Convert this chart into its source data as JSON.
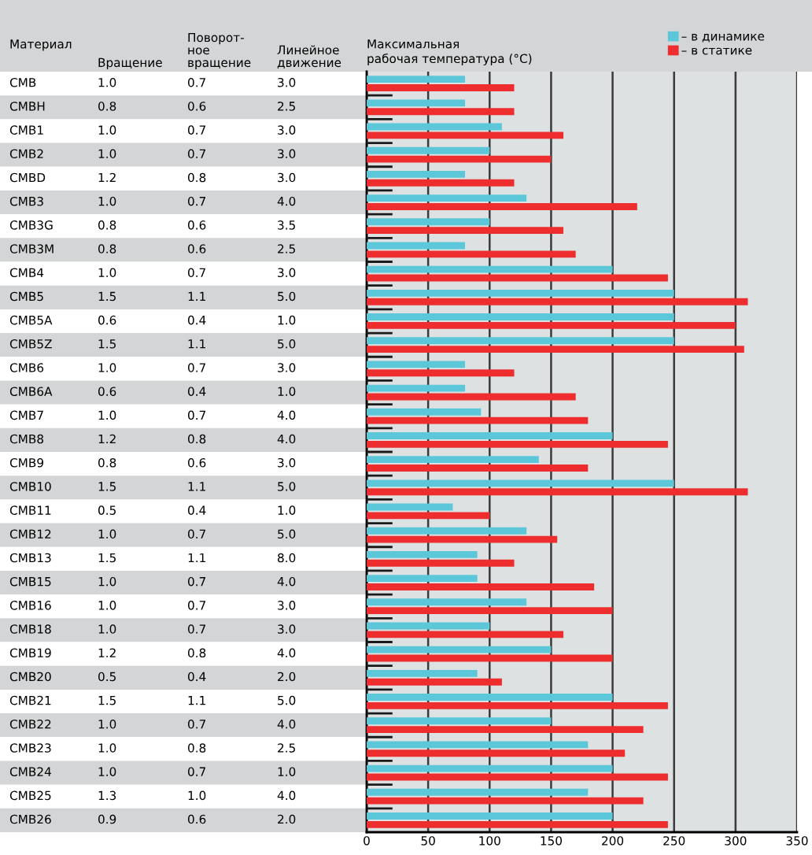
{
  "chart_data": [
    {
      "type": "other",
      "ylabel": "Материал",
      "categories": [
        "CMB",
        "CMBH",
        "CMB1",
        "CMB2",
        "CMBD",
        "CMB3",
        "CMB3G",
        "CMB3M",
        "CMB4",
        "CMB5",
        "CMB5A",
        "CMB5Z",
        "CMB6",
        "CMB6A",
        "CMB7",
        "CMB8",
        "CMB9",
        "CMB10",
        "CMB11",
        "CMB12",
        "CMB13",
        "CMB15",
        "CMB16",
        "CMB18",
        "CMB19",
        "CMB20",
        "CMB21",
        "CMB22",
        "CMB23",
        "CMB24",
        "CMB25",
        "CMB26"
      ],
      "series": [
        {
          "name": "Вращение",
          "colors": [
            "#ffffff",
            "#d4d5d6",
            "#ffffff",
            "#d4d5d6",
            "#ffffff",
            "#d4d5d6",
            "#ffffff",
            "#d4d5d6",
            "#ffffff",
            "#d4d5d6",
            "#ffffff",
            "#d4d5d6",
            "#ffffff",
            "#d4d5d6",
            "#ffffff",
            "#d4d5d6",
            "#ffffff",
            "#d4d5d6",
            "#ffffff",
            "#d4d5d6",
            "#ffffff",
            "#d4d5d6",
            "#ffffff",
            "#d4d5d6",
            "#ffffff",
            "#d4d5d6",
            "#ffffff",
            "#d4d5d6",
            "#ffffff",
            "#d4d5d6",
            "#ffffff",
            "#d4d5d6"
          ],
          "values": [
            1.0,
            0.8,
            1.0,
            1.0,
            1.2,
            1.0,
            0.8,
            0.8,
            1.0,
            1.5,
            0.6,
            1.5,
            1.0,
            0.6,
            1.0,
            1.2,
            0.8,
            1.5,
            0.5,
            1.0,
            1.5,
            1.0,
            1.0,
            1.0,
            1.2,
            0.5,
            1.5,
            1.0,
            1.0,
            1.0,
            1.3,
            0.9
          ],
          "value_labels": [
            "1.0",
            "0.8",
            "1.0",
            "1.0",
            "1.2",
            "1.0",
            "0.8",
            "0.8",
            "1.0",
            "1.5",
            "0.6",
            "1.5",
            "1.0",
            "0.6",
            "1.0",
            "1.2",
            "0.8",
            "1.5",
            "0.5",
            "1.0",
            "1.5",
            "1.0",
            "1.0",
            "1.0",
            "1.2",
            "0.5",
            "1.5",
            "1.0",
            "1.0",
            "1.0",
            "1.3",
            "0.9"
          ]
        },
        {
          "name": "Поворот-\nное\nвращение",
          "values": [
            0.7,
            0.6,
            0.7,
            0.7,
            0.8,
            0.7,
            0.6,
            0.6,
            0.7,
            1.1,
            0.4,
            1.1,
            0.7,
            0.4,
            0.7,
            0.8,
            0.6,
            1.1,
            0.4,
            0.7,
            1.1,
            0.7,
            0.7,
            0.7,
            0.8,
            0.4,
            1.1,
            0.7,
            0.8,
            0.7,
            1.0,
            0.6
          ],
          "value_labels": [
            "0.7",
            "0.6",
            "0.7",
            "0.7",
            "0.8",
            "0.7",
            "0.6",
            "0.6",
            "0.7",
            "1.1",
            "0.4",
            "1.1",
            "0.7",
            "0.4",
            "0.7",
            "0.8",
            "0.6",
            "1.1",
            "0.4",
            "0.7",
            "1.1",
            "0.7",
            "0.7",
            "0.7",
            "0.8",
            "0.4",
            "1.1",
            "0.7",
            "0.8",
            "0.7",
            "1.0",
            "0.6"
          ]
        },
        {
          "name": "Линейное\nдвижение",
          "values": [
            3.0,
            2.5,
            3.0,
            3.0,
            3.0,
            4.0,
            3.5,
            2.5,
            3.0,
            5.0,
            1.0,
            5.0,
            3.0,
            1.0,
            4.0,
            4.0,
            3.0,
            5.0,
            1.0,
            5.0,
            8.0,
            4.0,
            3.0,
            3.0,
            4.0,
            2.0,
            5.0,
            4.0,
            2.5,
            1.0,
            4.0,
            2.0
          ],
          "value_labels": [
            "3.0",
            "2.5",
            "3.0",
            "3.0",
            "3.0",
            "4.0",
            "3.5",
            "2.5",
            "3.0",
            "5.0",
            "1.0",
            "5.0",
            "3.0",
            "1.0",
            "4.0",
            "4.0",
            "3.0",
            "5.0",
            "1.0",
            "5.0",
            "8.0",
            "4.0",
            "3.0",
            "3.0",
            "4.0",
            "2.0",
            "5.0",
            "4.0",
            "2.5",
            "1.0",
            "4.0",
            "2.0"
          ]
        }
      ]
    },
    {
      "type": "bar",
      "orientation": "horizontal",
      "title": "Максимальная\nрабочая температура (°C)",
      "categories": [
        null,
        null,
        null,
        null,
        null,
        null,
        null,
        null,
        null,
        null,
        null,
        null,
        null,
        null,
        null,
        null,
        null,
        null,
        null,
        null,
        null,
        null,
        null,
        null,
        null,
        null,
        null,
        null,
        null,
        null,
        null,
        null
      ],
      "series": [
        {
          "name": "– в динамике",
          "color": "#5bc7d8",
          "values": [
            80,
            80,
            110,
            100,
            80,
            130,
            100,
            80,
            200,
            250,
            250,
            250,
            80,
            80,
            93,
            200,
            140,
            250,
            70,
            130,
            90,
            90,
            130,
            100,
            150,
            90,
            200,
            150,
            180,
            200,
            180,
            200
          ]
        },
        {
          "name": "– в статике",
          "color": "#ee2e2e",
          "values": [
            120,
            120,
            160,
            150,
            120,
            220,
            160,
            170,
            245,
            310,
            300,
            307,
            120,
            170,
            180,
            245,
            180,
            310,
            100,
            155,
            120,
            185,
            200,
            160,
            200,
            110,
            245,
            225,
            210,
            245,
            225,
            245
          ]
        }
      ],
      "xlim": [
        0,
        350
      ],
      "xticks": [
        0,
        50,
        100,
        150,
        200,
        250,
        300,
        350
      ],
      "grid": "x",
      "legend": "top right",
      "tick_labels": "x"
    }
  ]
}
